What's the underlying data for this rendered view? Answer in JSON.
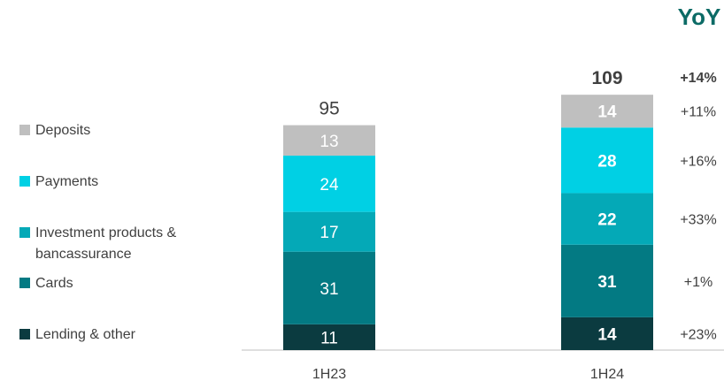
{
  "chart_data": {
    "type": "bar",
    "stacked": true,
    "categories": [
      "1H23",
      "1H24"
    ],
    "totals": [
      95,
      109
    ],
    "series": [
      {
        "name": "Lending & other",
        "values": [
          11,
          14
        ],
        "color": "#0b3b40",
        "yoy": "+23%"
      },
      {
        "name": "Cards",
        "values": [
          31,
          31
        ],
        "color": "#037a83",
        "yoy": "+1%"
      },
      {
        "name": "Investment products & bancassurance",
        "values": [
          17,
          22
        ],
        "color": "#04a9b7",
        "yoy": "+33%"
      },
      {
        "name": "Payments",
        "values": [
          24,
          28
        ],
        "color": "#00d0e4",
        "yoy": "+16%"
      },
      {
        "name": "Deposits",
        "values": [
          13,
          14
        ],
        "color": "#bfbfbf",
        "yoy": "+11%"
      }
    ],
    "yoy_header": "YoY",
    "yoy_total": "+14%",
    "legend_position": "left",
    "grid": false
  },
  "colors": {
    "yoy_header": "#0c6b66",
    "text": "#404040",
    "axis": "#bfbfbf"
  }
}
